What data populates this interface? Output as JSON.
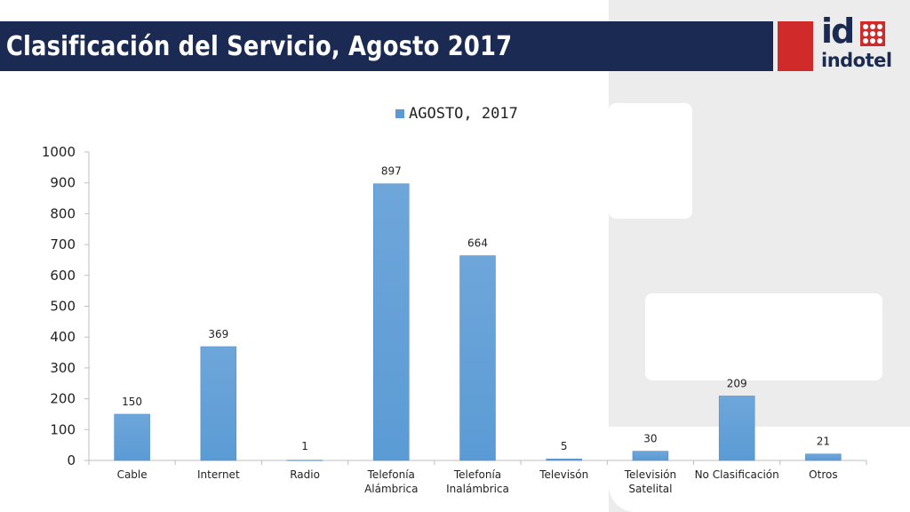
{
  "header": {
    "title": "Clasificación del Servicio, Agosto 2017",
    "logo": {
      "mark": "id",
      "name": "indotel",
      "colors": {
        "navy": "#1b2a52",
        "red": "#d02a2a"
      }
    }
  },
  "chart_data": {
    "type": "bar",
    "categories": [
      [
        "Cable"
      ],
      [
        "Internet"
      ],
      [
        "Radio"
      ],
      [
        "Telefonía",
        "Alámbrica"
      ],
      [
        "Telefonía",
        "Inalámbrica"
      ],
      [
        "Televisón"
      ],
      [
        "Televisión",
        "Satelital"
      ],
      [
        "No Clasificación"
      ],
      [
        "Otros"
      ]
    ],
    "series": [
      {
        "name": "AGOSTO, 2017",
        "values": [
          150,
          369,
          1,
          897,
          664,
          5,
          30,
          209,
          21
        ],
        "color": "#5b9bd5"
      }
    ],
    "data_labels": [
      "150",
      "369",
      "1",
      "897",
      "664",
      "5",
      "30",
      "209",
      "21"
    ],
    "y_ticks": [
      "0",
      "100",
      "200",
      "300",
      "400",
      "500",
      "600",
      "700",
      "800",
      "900",
      "1000"
    ],
    "ylim": [
      0,
      1000
    ],
    "legend_position": "top",
    "grid": false
  }
}
